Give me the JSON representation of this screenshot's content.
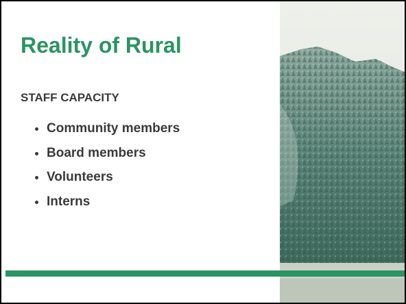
{
  "title": "Reality of Rural",
  "subtitle": "STAFF CAPACITY",
  "bullets": [
    "Community members",
    "Board members",
    "Volunteers",
    "Interns"
  ]
}
